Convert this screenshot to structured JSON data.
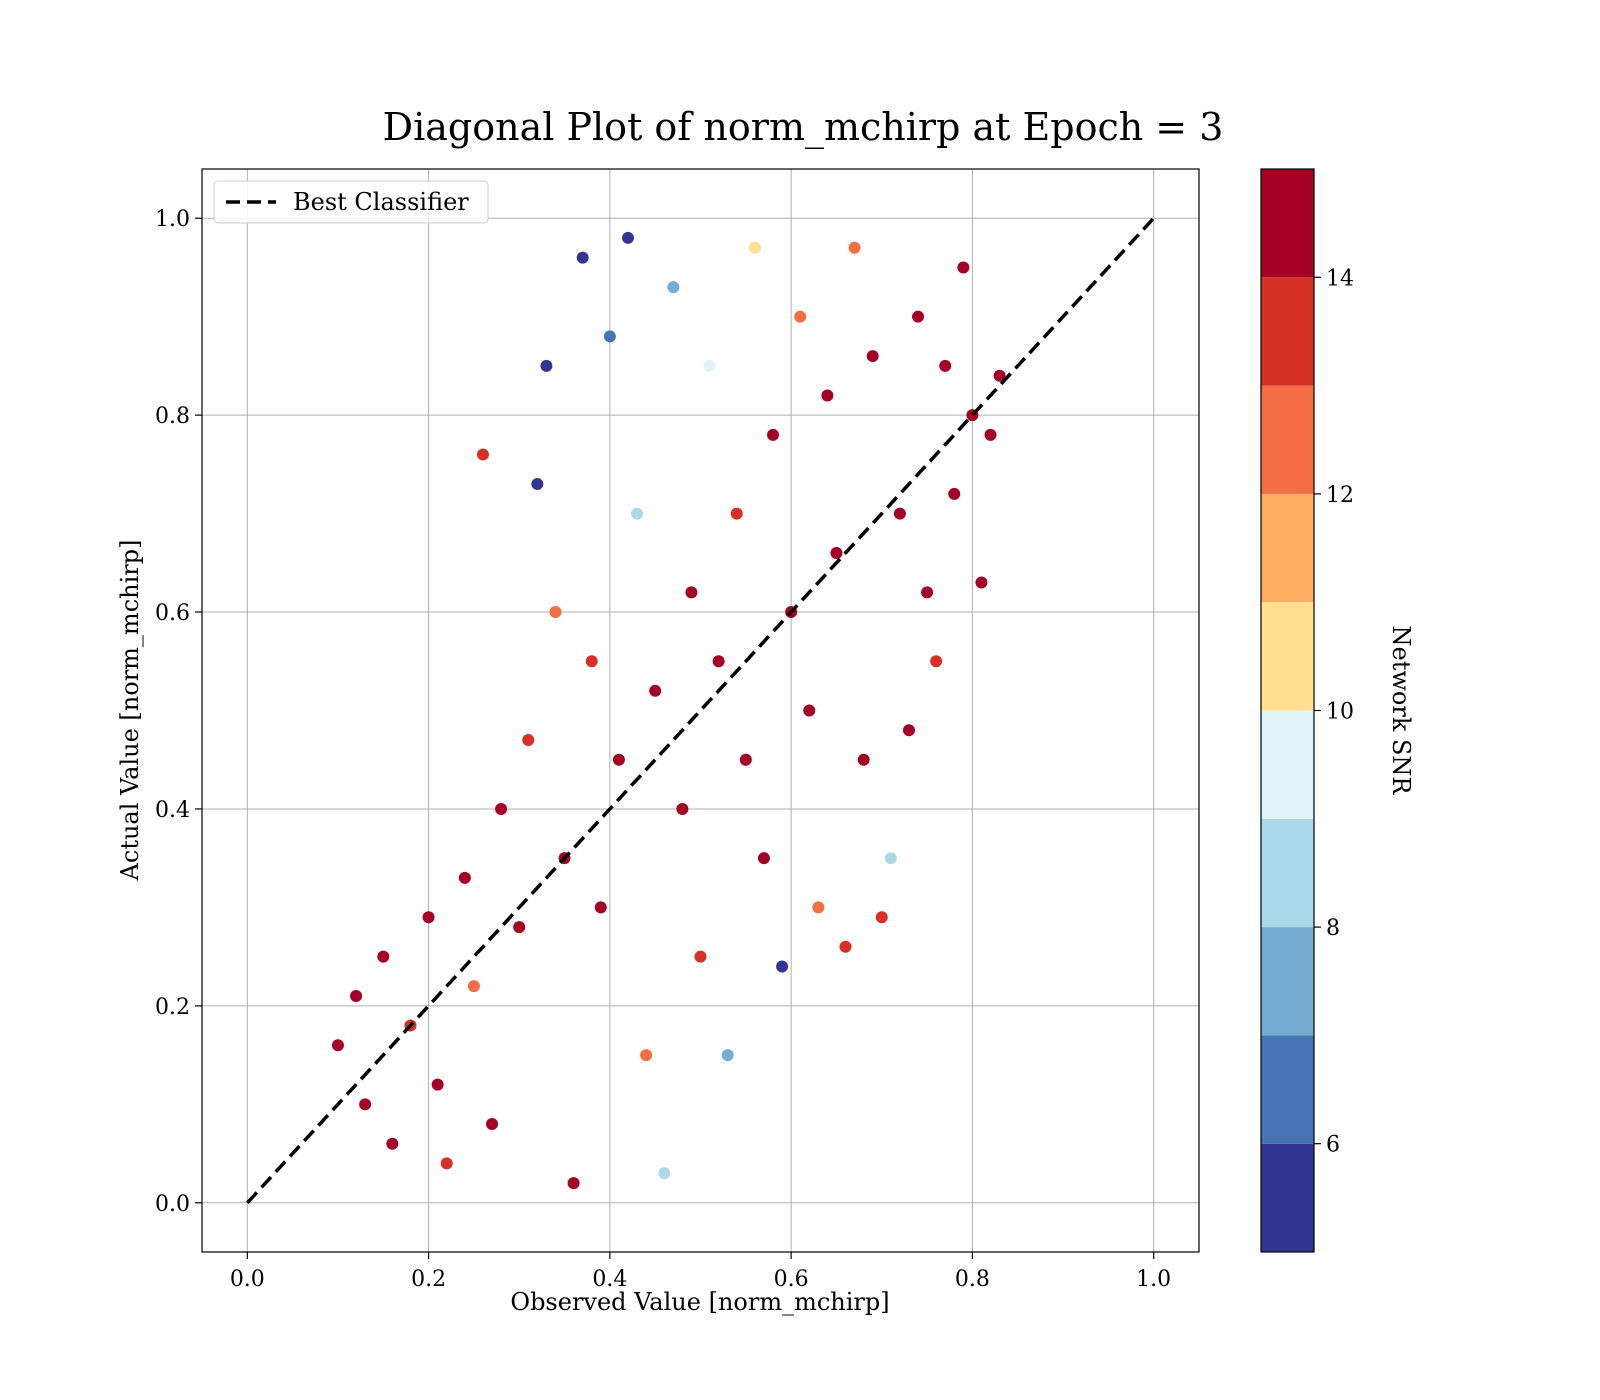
{
  "chart_data": {
    "type": "scatter",
    "title": "Diagonal Plot of norm_mchirp at Epoch = 3",
    "xlabel": "Observed Value [norm_mchirp]",
    "ylabel": "Actual Value [norm_mchirp]",
    "xlim": [
      -0.05,
      1.05
    ],
    "ylim": [
      -0.05,
      1.05
    ],
    "xticks": [
      0.0,
      0.2,
      0.4,
      0.6,
      0.8,
      1.0
    ],
    "yticks": [
      0.0,
      0.2,
      0.4,
      0.6,
      0.8,
      1.0
    ],
    "xtick_labels": [
      "0.0",
      "0.2",
      "0.4",
      "0.6",
      "0.8",
      "1.0"
    ],
    "ytick_labels": [
      "0.0",
      "0.2",
      "0.4",
      "0.6",
      "0.8",
      "1.0"
    ],
    "grid": true,
    "legend": {
      "position": "top-left",
      "entries": [
        {
          "label": "Best Classifier",
          "style": "dashed",
          "color": "#000000"
        }
      ]
    },
    "reference_line": {
      "name": "Best Classifier",
      "x": [
        0.0,
        1.0
      ],
      "y": [
        0.0,
        1.0
      ]
    },
    "colorbar": {
      "label": "Network SNR",
      "min": 5,
      "max": 15,
      "ticks": [
        6,
        8,
        10,
        12,
        14
      ],
      "tick_labels": [
        "6",
        "8",
        "10",
        "12",
        "14"
      ],
      "bins": 10,
      "colors": [
        "#313695",
        "#4575b4",
        "#74add1",
        "#abd9e9",
        "#e0f3f8",
        "#fee090",
        "#fdae61",
        "#f46d43",
        "#d73027",
        "#a50026"
      ]
    },
    "series": [
      {
        "description_of_distribution": "dense band along diagonal",
        "points": [
          [
            0.1,
            0.16,
            14.8
          ],
          [
            0.12,
            0.21,
            14.6
          ],
          [
            0.13,
            0.1,
            14.9
          ],
          [
            0.15,
            0.25,
            14.7
          ],
          [
            0.16,
            0.06,
            14.5
          ],
          [
            0.18,
            0.18,
            13.5
          ],
          [
            0.2,
            0.29,
            14.8
          ],
          [
            0.21,
            0.12,
            14.2
          ],
          [
            0.22,
            0.04,
            13.8
          ],
          [
            0.24,
            0.33,
            14.9
          ],
          [
            0.25,
            0.22,
            12.5
          ],
          [
            0.26,
            0.76,
            13.7
          ],
          [
            0.27,
            0.08,
            14.6
          ],
          [
            0.28,
            0.4,
            14.3
          ],
          [
            0.3,
            0.28,
            14.9
          ],
          [
            0.31,
            0.47,
            13.2
          ],
          [
            0.32,
            0.73,
            5.4
          ],
          [
            0.33,
            0.85,
            5.2
          ],
          [
            0.34,
            0.6,
            12.0
          ],
          [
            0.35,
            0.35,
            14.8
          ],
          [
            0.36,
            0.02,
            14.4
          ],
          [
            0.37,
            0.96,
            5.1
          ],
          [
            0.38,
            0.55,
            13.8
          ],
          [
            0.39,
            0.3,
            14.9
          ],
          [
            0.4,
            0.88,
            6.0
          ],
          [
            0.41,
            0.45,
            14.7
          ],
          [
            0.42,
            0.98,
            5.5
          ],
          [
            0.43,
            0.7,
            8.5
          ],
          [
            0.44,
            0.15,
            12.7
          ],
          [
            0.45,
            0.52,
            14.6
          ],
          [
            0.46,
            0.03,
            8.8
          ],
          [
            0.47,
            0.93,
            7.2
          ],
          [
            0.48,
            0.4,
            14.8
          ],
          [
            0.49,
            0.62,
            14.1
          ],
          [
            0.5,
            0.25,
            13.4
          ],
          [
            0.51,
            0.85,
            9.6
          ],
          [
            0.52,
            0.55,
            14.9
          ],
          [
            0.53,
            0.15,
            7.6
          ],
          [
            0.54,
            0.7,
            13.5
          ],
          [
            0.55,
            0.45,
            14.7
          ],
          [
            0.56,
            0.97,
            10.5
          ],
          [
            0.57,
            0.35,
            14.3
          ],
          [
            0.58,
            0.78,
            14.8
          ],
          [
            0.59,
            0.24,
            5.3
          ],
          [
            0.6,
            0.6,
            14.9
          ],
          [
            0.61,
            0.9,
            12.6
          ],
          [
            0.62,
            0.5,
            14.5
          ],
          [
            0.63,
            0.3,
            12.2
          ],
          [
            0.64,
            0.82,
            14.9
          ],
          [
            0.65,
            0.66,
            14.6
          ],
          [
            0.66,
            0.26,
            13.9
          ],
          [
            0.67,
            0.97,
            12.9
          ],
          [
            0.68,
            0.45,
            14.8
          ],
          [
            0.69,
            0.86,
            14.7
          ],
          [
            0.7,
            0.29,
            13.6
          ],
          [
            0.71,
            0.35,
            8.4
          ],
          [
            0.72,
            0.7,
            14.9
          ],
          [
            0.73,
            0.48,
            14.4
          ],
          [
            0.74,
            0.9,
            14.8
          ],
          [
            0.75,
            0.62,
            14.9
          ],
          [
            0.76,
            0.55,
            13.3
          ],
          [
            0.77,
            0.85,
            14.6
          ],
          [
            0.78,
            0.72,
            14.8
          ],
          [
            0.79,
            0.95,
            14.7
          ],
          [
            0.8,
            0.8,
            14.9
          ],
          [
            0.81,
            0.63,
            14.2
          ],
          [
            0.82,
            0.78,
            14.5
          ],
          [
            0.83,
            0.84,
            14.0
          ]
        ]
      }
    ]
  }
}
